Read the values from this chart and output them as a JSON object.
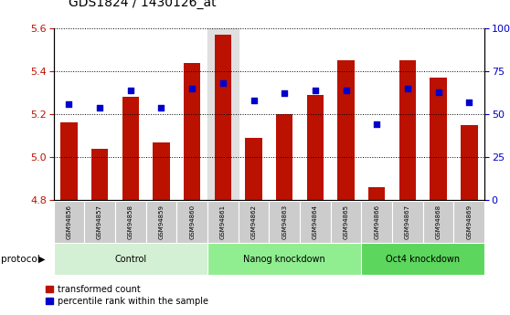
{
  "title": "GDS1824 / 1430126_at",
  "samples": [
    "GSM94856",
    "GSM94857",
    "GSM94858",
    "GSM94859",
    "GSM94860",
    "GSM94861",
    "GSM94862",
    "GSM94863",
    "GSM94864",
    "GSM94865",
    "GSM94866",
    "GSM94867",
    "GSM94868",
    "GSM94869"
  ],
  "transformed_count": [
    5.16,
    5.04,
    5.28,
    5.07,
    5.44,
    5.57,
    5.09,
    5.2,
    5.29,
    5.45,
    4.86,
    5.45,
    5.37,
    5.15
  ],
  "percentile_rank": [
    56,
    54,
    64,
    54,
    65,
    68,
    58,
    62,
    64,
    64,
    44,
    65,
    63,
    57
  ],
  "groups": [
    {
      "label": "Control",
      "start": 0,
      "end": 5,
      "color": "#d4f0d4"
    },
    {
      "label": "Nanog knockdown",
      "start": 5,
      "end": 10,
      "color": "#90ee90"
    },
    {
      "label": "Oct4 knockdown",
      "start": 10,
      "end": 14,
      "color": "#5cd65c"
    }
  ],
  "protocol_label": "protocol",
  "bar_color": "#bb1100",
  "dot_color": "#0000cc",
  "ylim_left": [
    4.8,
    5.6
  ],
  "ylim_right": [
    0,
    100
  ],
  "yticks_left": [
    4.8,
    5.0,
    5.2,
    5.4,
    5.6
  ],
  "yticks_right": [
    0,
    25,
    50,
    75,
    100
  ],
  "ytick_labels_right": [
    "0",
    "25",
    "50",
    "75",
    "100%"
  ],
  "bar_width": 0.55,
  "highlighted_bar": 5
}
